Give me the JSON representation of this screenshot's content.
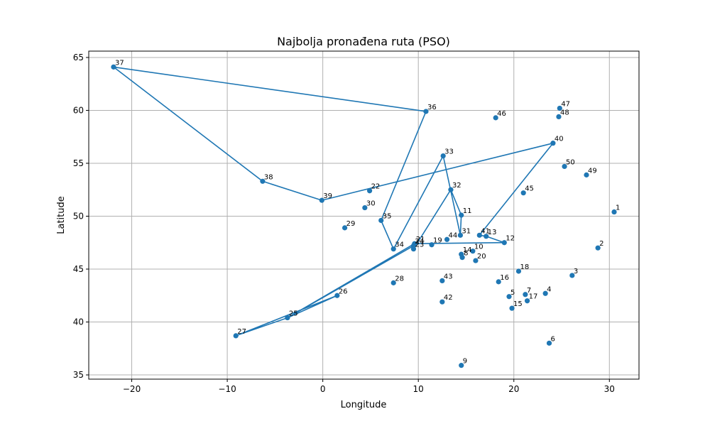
{
  "chart_data": {
    "type": "line",
    "title": "Najbolja pronađena ruta (PSO)",
    "xlabel": "Longitude",
    "ylabel": "Latitude",
    "xlim": [
      -24.5,
      33.1
    ],
    "ylim": [
      34.6,
      65.6
    ],
    "xticks": [
      -20,
      -10,
      0,
      10,
      20,
      30
    ],
    "yticks": [
      35,
      40,
      45,
      50,
      55,
      60,
      65
    ],
    "xtick_labels": [
      "−20",
      "−10",
      "0",
      "10",
      "20",
      "30"
    ],
    "ytick_labels": [
      "35",
      "40",
      "45",
      "50",
      "55",
      "60",
      "65"
    ],
    "grid": true,
    "line_color": "#1f77b4",
    "points": [
      {
        "label": "1",
        "x": 30.5,
        "y": 50.4
      },
      {
        "label": "2",
        "x": 28.8,
        "y": 47.0
      },
      {
        "label": "3",
        "x": 26.1,
        "y": 44.4
      },
      {
        "label": "4",
        "x": 23.3,
        "y": 42.7
      },
      {
        "label": "5",
        "x": 19.5,
        "y": 42.4
      },
      {
        "label": "6",
        "x": 23.7,
        "y": 38.0
      },
      {
        "label": "7",
        "x": 21.2,
        "y": 42.6
      },
      {
        "label": "8",
        "x": 14.6,
        "y": 46.1
      },
      {
        "label": "9",
        "x": 14.5,
        "y": 35.9
      },
      {
        "label": "10",
        "x": 15.7,
        "y": 46.7
      },
      {
        "label": "11",
        "x": 14.5,
        "y": 50.1
      },
      {
        "label": "12",
        "x": 19.0,
        "y": 47.5
      },
      {
        "label": "13",
        "x": 17.1,
        "y": 48.1
      },
      {
        "label": "14",
        "x": 14.5,
        "y": 46.4
      },
      {
        "label": "15",
        "x": 19.8,
        "y": 41.3
      },
      {
        "label": "16",
        "x": 18.4,
        "y": 43.8
      },
      {
        "label": "17",
        "x": 21.4,
        "y": 42.0
      },
      {
        "label": "18",
        "x": 20.5,
        "y": 44.8
      },
      {
        "label": "19",
        "x": 11.4,
        "y": 47.3
      },
      {
        "label": "20",
        "x": 16.0,
        "y": 45.8
      },
      {
        "label": "21",
        "x": 9.6,
        "y": 47.4
      },
      {
        "label": "22",
        "x": 4.9,
        "y": 52.4
      },
      {
        "label": "23",
        "x": 9.5,
        "y": 46.9
      },
      {
        "label": "24",
        "x": 9.5,
        "y": 47.2
      },
      {
        "label": "25",
        "x": -3.7,
        "y": 40.4
      },
      {
        "label": "26",
        "x": 1.5,
        "y": 42.5
      },
      {
        "label": "27",
        "x": -9.1,
        "y": 38.7
      },
      {
        "label": "28",
        "x": 7.4,
        "y": 43.7
      },
      {
        "label": "29",
        "x": 2.3,
        "y": 48.9
      },
      {
        "label": "30",
        "x": 4.4,
        "y": 50.8
      },
      {
        "label": "31",
        "x": 14.4,
        "y": 48.2
      },
      {
        "label": "32",
        "x": 13.4,
        "y": 52.5
      },
      {
        "label": "33",
        "x": 12.6,
        "y": 55.7
      },
      {
        "label": "34",
        "x": 7.4,
        "y": 46.9
      },
      {
        "label": "35",
        "x": 6.1,
        "y": 49.6
      },
      {
        "label": "36",
        "x": 10.8,
        "y": 59.9
      },
      {
        "label": "37",
        "x": -21.9,
        "y": 64.1
      },
      {
        "label": "38",
        "x": -6.3,
        "y": 53.3
      },
      {
        "label": "39",
        "x": -0.1,
        "y": 51.5
      },
      {
        "label": "40",
        "x": 24.1,
        "y": 56.9
      },
      {
        "label": "41",
        "x": 16.4,
        "y": 48.2
      },
      {
        "label": "42",
        "x": 12.5,
        "y": 41.9
      },
      {
        "label": "43",
        "x": 12.5,
        "y": 43.9
      },
      {
        "label": "44",
        "x": 13.0,
        "y": 47.8
      },
      {
        "label": "45",
        "x": 21.0,
        "y": 52.2
      },
      {
        "label": "46",
        "x": 18.1,
        "y": 59.3
      },
      {
        "label": "47",
        "x": 24.8,
        "y": 60.2
      },
      {
        "label": "48",
        "x": 24.7,
        "y": 59.4
      },
      {
        "label": "49",
        "x": 27.6,
        "y": 53.9
      },
      {
        "label": "50",
        "x": 25.3,
        "y": 54.7
      }
    ],
    "route": [
      "37",
      "36",
      "35",
      "34",
      "33",
      "31",
      "11",
      "32",
      "23",
      "24",
      "25",
      "26",
      "27",
      "25",
      "21",
      "12",
      "13",
      "41",
      "40",
      "39",
      "38",
      "37"
    ]
  }
}
